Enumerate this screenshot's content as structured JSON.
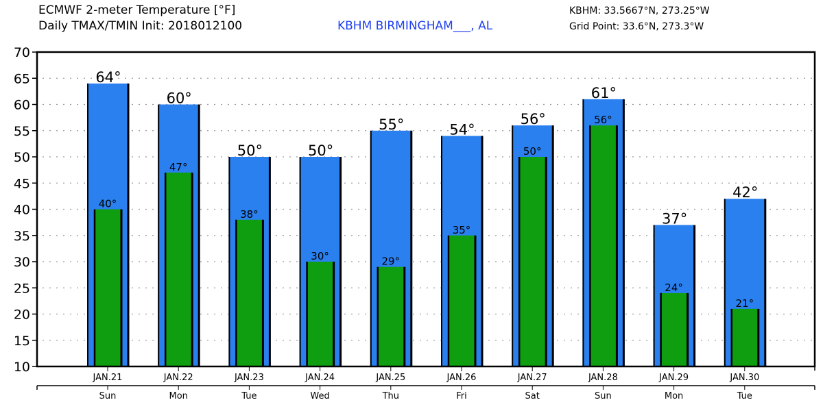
{
  "header": {
    "title_line1": "ECMWF 2-meter Temperature [°F]",
    "title_line2": "Daily TMAX/TMIN Init: 2018012100",
    "station": "KBHM BIRMINGHAM___, AL",
    "station_coords": "KBHM: 33.5667°N, 273.25°W",
    "grid_point": "Grid Point: 33.6°N, 273.3°W"
  },
  "colors": {
    "tmax_bar": "#2a80ee",
    "tmin_bar": "#0f9e10",
    "station_text": "#1f3ff0",
    "grid": "#9a9a9a"
  },
  "chart_data": {
    "type": "bar",
    "title": "ECMWF 2-meter Temperature [°F]",
    "subtitle": "Daily TMAX/TMIN Init: 2018012100",
    "xlabel": "",
    "ylabel": "",
    "ylim": [
      10,
      70
    ],
    "yticks": [
      10,
      15,
      20,
      25,
      30,
      35,
      40,
      45,
      50,
      55,
      60,
      65,
      70
    ],
    "grid": true,
    "categories": [
      "JAN.21",
      "JAN.22",
      "JAN.23",
      "JAN.24",
      "JAN.25",
      "JAN.26",
      "JAN.27",
      "JAN.28",
      "JAN.29",
      "JAN.30"
    ],
    "weekdays": [
      "Sun",
      "Mon",
      "Tue",
      "Wed",
      "Thu",
      "Fri",
      "Sat",
      "Sun",
      "Mon",
      "Tue"
    ],
    "series": [
      {
        "name": "TMAX",
        "values": [
          64,
          60,
          50,
          50,
          55,
          54,
          56,
          61,
          37,
          42
        ],
        "labels": [
          "64°",
          "60°",
          "50°",
          "50°",
          "55°",
          "54°",
          "56°",
          "61°",
          "37°",
          "42°"
        ]
      },
      {
        "name": "TMIN",
        "values": [
          40,
          47,
          38,
          30,
          29,
          35,
          50,
          56,
          24,
          21
        ],
        "labels": [
          "40°",
          "47°",
          "38°",
          "30°",
          "29°",
          "35°",
          "50°",
          "56°",
          "24°",
          "21°"
        ]
      }
    ]
  }
}
